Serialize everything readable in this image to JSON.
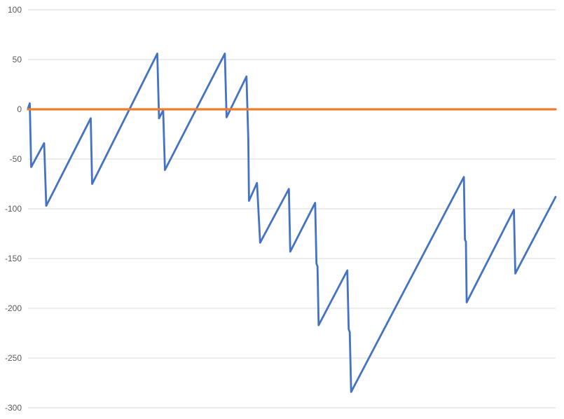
{
  "chart": {
    "background_color": "#FFFFFF",
    "grid_color": "#D9D9D9",
    "tick_label_color": "#595959"
  },
  "chart_data": {
    "type": "line",
    "title": "",
    "xlabel": "",
    "ylabel": "",
    "legend_visible": false,
    "grid": true,
    "x_axis": {
      "labels_visible": false,
      "range_percent": [
        0,
        100
      ]
    },
    "y_axis": {
      "ticks": [
        100,
        50,
        0,
        -50,
        -100,
        -150,
        -200,
        -250,
        -300
      ],
      "range": [
        -300,
        100
      ]
    },
    "series": [
      {
        "name": "sawtooth-series",
        "color": "#4472C4",
        "stroke_width": 2.8,
        "points": [
          [
            0.0,
            1
          ],
          [
            0.33,
            6
          ],
          [
            0.6,
            -58
          ],
          [
            3.05,
            -34
          ],
          [
            3.45,
            -97
          ],
          [
            11.88,
            -9
          ],
          [
            12.15,
            -75
          ],
          [
            24.5,
            56
          ],
          [
            24.83,
            -9
          ],
          [
            25.62,
            -1
          ],
          [
            25.95,
            -61
          ],
          [
            37.3,
            56
          ],
          [
            37.63,
            -8
          ],
          [
            41.41,
            33
          ],
          [
            41.75,
            -30
          ],
          [
            41.88,
            -92
          ],
          [
            43.4,
            -74
          ],
          [
            44.0,
            -134
          ],
          [
            49.44,
            -80
          ],
          [
            49.71,
            -143
          ],
          [
            54.42,
            -94
          ],
          [
            54.68,
            -155
          ],
          [
            54.88,
            -158
          ],
          [
            55.08,
            -217
          ],
          [
            60.52,
            -162
          ],
          [
            60.78,
            -221
          ],
          [
            60.98,
            -224
          ],
          [
            61.25,
            -284
          ],
          [
            82.62,
            -68
          ],
          [
            82.82,
            -131
          ],
          [
            83.0,
            -133
          ],
          [
            83.15,
            -194
          ],
          [
            92.1,
            -101
          ],
          [
            92.37,
            -165
          ],
          [
            100.0,
            -88
          ]
        ]
      },
      {
        "name": "zero-baseline",
        "color": "#ED7D31",
        "stroke_width": 3.3,
        "points": [
          [
            0.0,
            0
          ],
          [
            100.0,
            0
          ]
        ]
      }
    ]
  }
}
